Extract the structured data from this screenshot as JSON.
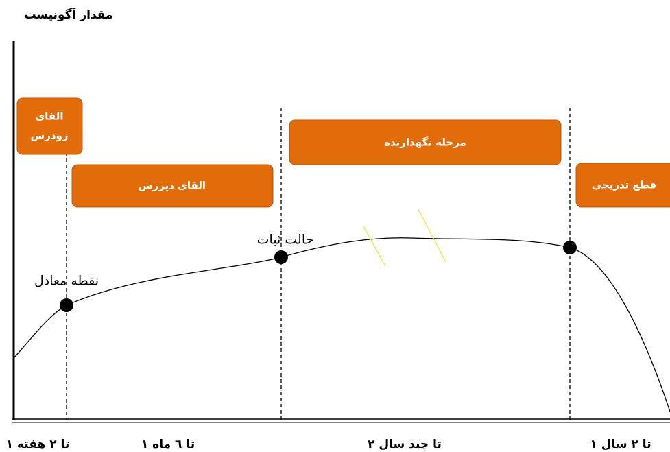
{
  "title": "مقدار آگونیست",
  "boxes": [
    {
      "lines": [
        "القای",
        "زودرس"
      ]
    },
    {
      "lines": [
        "القای دیررس"
      ]
    },
    {
      "lines": [
        "مرحله نگهدارنده"
      ]
    },
    {
      "lines": [
        "قطع تدریجی"
      ]
    }
  ],
  "points": [
    {
      "label": "نقطه معادل"
    },
    {
      "label": "حالت ثبات"
    }
  ],
  "x_labels": [
    "۱ تا ۲ هفته",
    "۱ تا ٦ ماه",
    "۲ تا چند سال",
    "۱ تا ۲ سال"
  ]
}
